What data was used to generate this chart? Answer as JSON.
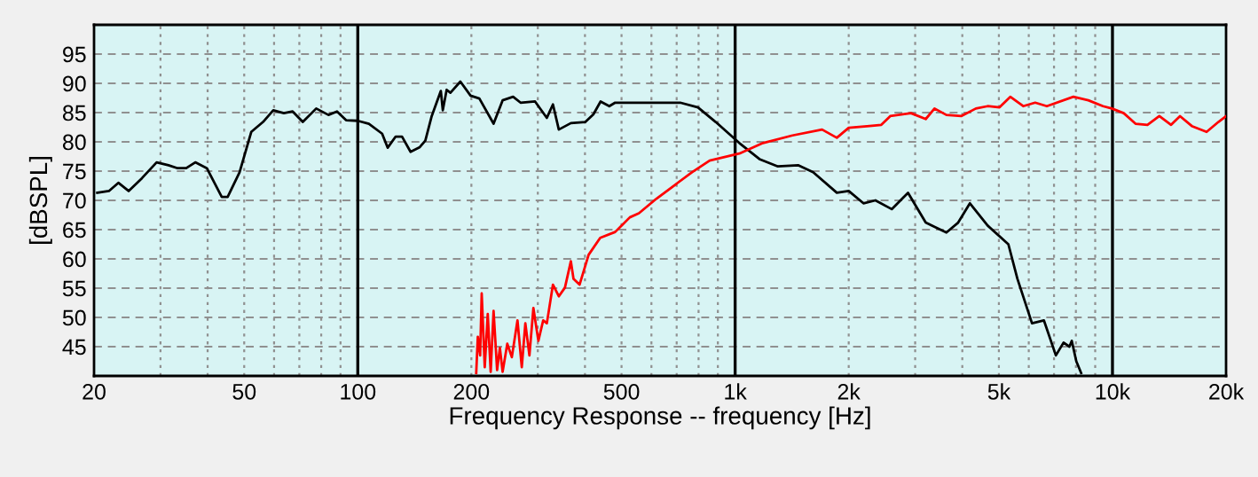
{
  "chart_data": {
    "type": "line",
    "xlabel": "Frequency Response -- frequency [Hz]",
    "ylabel": "[dBSPL]",
    "log": "x",
    "grid": true,
    "line_style": "solid",
    "marker": "none",
    "xlim": [
      20,
      20000
    ],
    "ylim": [
      40,
      100
    ],
    "xticks": [
      20,
      {
        "value": 30,
        "label": null
      },
      {
        "value": 40,
        "label": null
      },
      50,
      {
        "value": 60,
        "label": null
      },
      {
        "value": 70,
        "label": null
      },
      {
        "value": 80,
        "label": null
      },
      {
        "value": 90,
        "label": null
      },
      100,
      200,
      {
        "value": 300,
        "label": null
      },
      {
        "value": 400,
        "label": null
      },
      500,
      {
        "value": 600,
        "label": null
      },
      {
        "value": 700,
        "label": null
      },
      {
        "value": 800,
        "label": null
      },
      {
        "value": 900,
        "label": null
      },
      {
        "value": 1000,
        "label": "1k"
      },
      {
        "value": 2000,
        "label": "2k"
      },
      {
        "value": 3000,
        "label": null
      },
      {
        "value": 4000,
        "label": null
      },
      {
        "value": 5000,
        "label": "5k"
      },
      {
        "value": 6000,
        "label": null
      },
      {
        "value": 7000,
        "label": null
      },
      {
        "value": 8000,
        "label": null
      },
      {
        "value": 9000,
        "label": null
      },
      {
        "value": 10000,
        "label": "10k"
      },
      {
        "value": 20000,
        "label": "20k"
      }
    ],
    "yticks": [
      45,
      50,
      55,
      60,
      65,
      70,
      75,
      80,
      85,
      90,
      95
    ],
    "series": [
      {
        "color": "#000000",
        "x": [
          20.4,
          21.9,
          23.2,
          24.7,
          26.8,
          29.3,
          31.5,
          33.3,
          35.1,
          37.1,
          39.8,
          43.6,
          45.2,
          48.6,
          52.2,
          56.1,
          59.7,
          63.7,
          67.2,
          71.5,
          77.6,
          83.6,
          88.1,
          93.1,
          100,
          107,
          116,
          120,
          126,
          131,
          138,
          146,
          151,
          157,
          166,
          168,
          172,
          176,
          187,
          199,
          210,
          229,
          242,
          258,
          270,
          295,
          317,
          329,
          341,
          367,
          401,
          421,
          440,
          464,
          481,
          516,
          556,
          715,
          797,
          888,
          1026,
          1164,
          1298,
          1472,
          1610,
          1860,
          2000,
          2188,
          2354,
          2600,
          2872,
          3200,
          3630,
          3900,
          4190,
          4668,
          5298,
          5598,
          6120,
          6580,
          7080,
          7420,
          7690,
          7800,
          8020,
          8260
        ],
        "values": [
          71.3,
          71.6,
          73.0,
          71.6,
          73.8,
          76.5,
          76.0,
          75.5,
          75.5,
          76.5,
          75.5,
          70.6,
          70.6,
          74.8,
          81.7,
          83.4,
          85.4,
          84.9,
          85.2,
          83.4,
          85.7,
          84.6,
          85.2,
          83.7,
          83.6,
          83.1,
          81.4,
          79.0,
          80.9,
          80.9,
          78.3,
          79.1,
          80.2,
          84.4,
          88.7,
          85.4,
          88.9,
          88.4,
          90.3,
          87.9,
          87.4,
          83.1,
          87.1,
          87.7,
          86.7,
          86.9,
          84.1,
          86.4,
          82.1,
          83.2,
          83.4,
          84.7,
          86.9,
          86.1,
          86.7,
          86.7,
          86.7,
          86.7,
          85.9,
          83.4,
          79.8,
          77.0,
          75.8,
          76.0,
          74.8,
          71.3,
          71.6,
          69.5,
          70.0,
          68.5,
          71.3,
          66.2,
          64.5,
          66.2,
          69.5,
          65.7,
          62.5,
          56.6,
          49.0,
          49.5,
          43.5,
          45.7,
          45.0,
          46.0,
          42.5,
          40.5
        ]
      },
      {
        "color": "#ff0000",
        "x": [
          206,
          208,
          211,
          213,
          217,
          221,
          225,
          229,
          234,
          238,
          242,
          249,
          256,
          265,
          272,
          278,
          285,
          292,
          301,
          310,
          317,
          329,
          341,
          354,
          367,
          373,
          387,
          409,
          439,
          481,
          526,
          556,
          619,
          768,
          856,
          1026,
          1185,
          1419,
          1700,
          1860,
          2000,
          2270,
          2440,
          2577,
          2924,
          3200,
          3376,
          3630,
          3972,
          4346,
          4668,
          5020,
          5360,
          5800,
          6240,
          6700,
          7880,
          8630,
          9440,
          9960,
          10710,
          11510,
          12380,
          13310,
          14300,
          15100,
          16230,
          17760,
          19090,
          20000
        ],
        "values": [
          40.5,
          46.7,
          43.5,
          54.1,
          41.5,
          50.6,
          40.7,
          51.1,
          41.0,
          44.8,
          40.7,
          45.5,
          43.2,
          49.5,
          41.5,
          49.0,
          43.5,
          51.6,
          46.0,
          49.5,
          49.0,
          55.6,
          53.6,
          55.1,
          59.6,
          56.6,
          55.6,
          60.7,
          63.6,
          64.6,
          67.1,
          67.8,
          70.3,
          74.8,
          76.8,
          78.0,
          79.8,
          81.1,
          82.1,
          80.7,
          82.4,
          82.7,
          82.9,
          84.4,
          84.9,
          83.9,
          85.7,
          84.6,
          84.4,
          85.7,
          86.1,
          85.9,
          87.7,
          86.1,
          86.7,
          86.1,
          87.7,
          87.1,
          86.1,
          85.7,
          84.9,
          83.1,
          82.9,
          84.4,
          82.9,
          84.4,
          82.7,
          81.7,
          83.4,
          84.4
        ]
      }
    ]
  }
}
